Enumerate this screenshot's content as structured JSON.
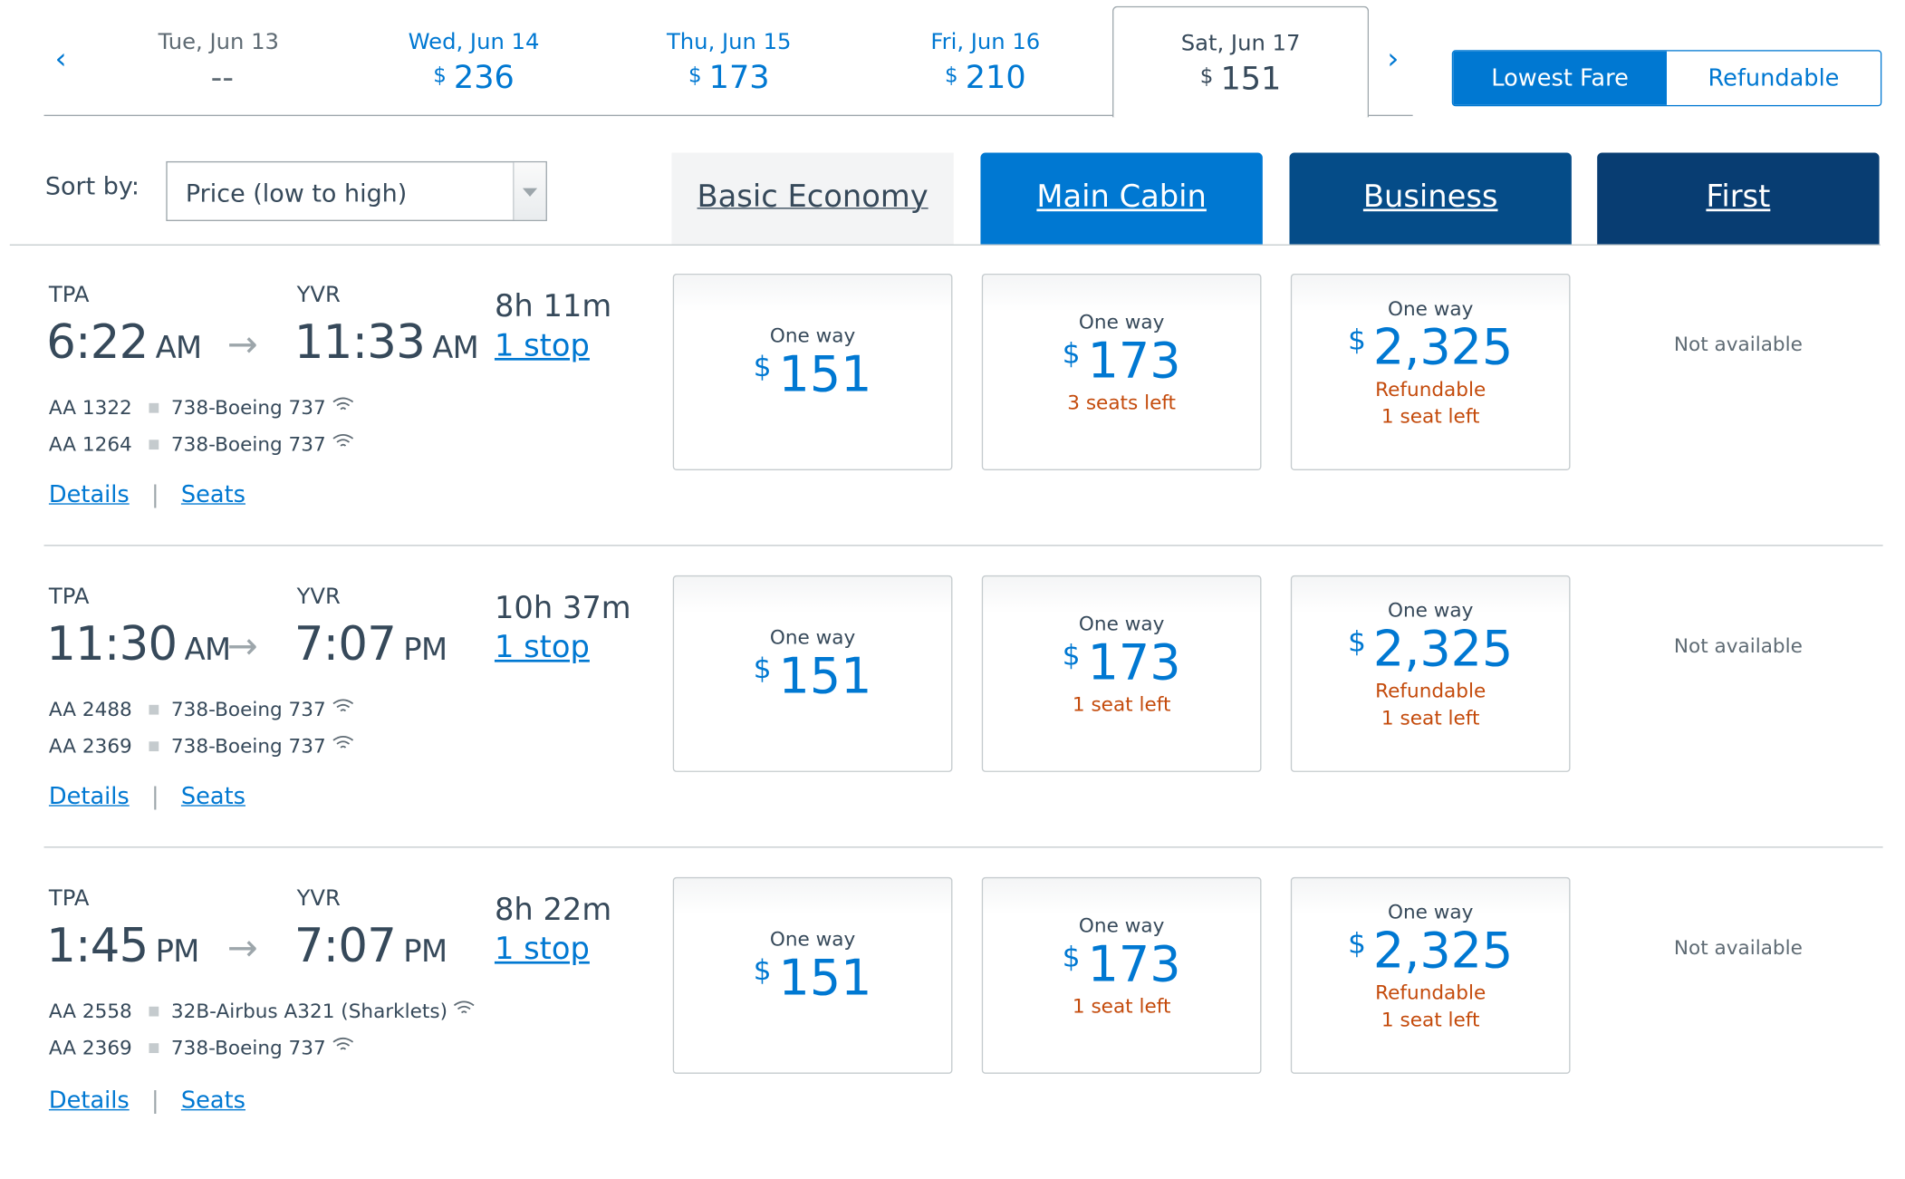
{
  "date_strip": {
    "prev_icon": "chevron-left-icon",
    "next_icon": "chevron-right-icon",
    "prev_glyph": "‹",
    "next_glyph": "›",
    "dates": [
      {
        "label": "Tue, Jun 13",
        "currency": "",
        "price": "--"
      },
      {
        "label": "Wed, Jun 14",
        "currency": "$",
        "price": "236"
      },
      {
        "label": "Thu, Jun 15",
        "currency": "$",
        "price": "173"
      },
      {
        "label": "Fri, Jun 16",
        "currency": "$",
        "price": "210"
      },
      {
        "label": "Sat, Jun 17",
        "currency": "$",
        "price": "151",
        "selected": true
      }
    ]
  },
  "fare_toggle": {
    "lowest": "Lowest Fare",
    "refundable": "Refundable",
    "active": "Lowest Fare"
  },
  "sort": {
    "label": "Sort by:",
    "value": "Price (low to high)"
  },
  "cabins": [
    "Basic Economy",
    "Main Cabin",
    "Business",
    "First"
  ],
  "colors": {
    "accent": "#0078d2",
    "business": "#054c88",
    "first": "#083d72",
    "warning": "#c44b0c"
  },
  "flights": [
    {
      "origin": "TPA",
      "dest": "YVR",
      "depart": "6:22",
      "depart_ampm": "AM",
      "arrive": "11:33",
      "arrive_ampm": "AM",
      "duration": "8h  11m",
      "stops": "1 stop",
      "legs": [
        {
          "flight": "AA 1322",
          "aircraft": "738-Boeing 737"
        },
        {
          "flight": "AA 1264",
          "aircraft": "738-Boeing 737"
        }
      ],
      "details": "Details",
      "seats": "Seats",
      "sep": "|",
      "fares": [
        {
          "label": "One way",
          "currency": "$",
          "amount": "151",
          "note1": "",
          "note2": ""
        },
        {
          "label": "One way",
          "currency": "$",
          "amount": "173",
          "note1": "3 seats left",
          "note2": ""
        },
        {
          "label": "One way",
          "currency": "$",
          "amount": "2,325",
          "note1": "Refundable",
          "note2": "1 seat left"
        }
      ],
      "first": "Not available"
    },
    {
      "origin": "TPA",
      "dest": "YVR",
      "depart": "11:30",
      "depart_ampm": "AM",
      "arrive": "7:07",
      "arrive_ampm": "PM",
      "duration": "10h  37m",
      "stops": "1 stop",
      "legs": [
        {
          "flight": "AA 2488",
          "aircraft": "738-Boeing 737"
        },
        {
          "flight": "AA 2369",
          "aircraft": "738-Boeing 737"
        }
      ],
      "details": "Details",
      "seats": "Seats",
      "sep": "|",
      "fares": [
        {
          "label": "One way",
          "currency": "$",
          "amount": "151",
          "note1": "",
          "note2": ""
        },
        {
          "label": "One way",
          "currency": "$",
          "amount": "173",
          "note1": "1 seat left",
          "note2": ""
        },
        {
          "label": "One way",
          "currency": "$",
          "amount": "2,325",
          "note1": "Refundable",
          "note2": "1 seat left"
        }
      ],
      "first": "Not available"
    },
    {
      "origin": "TPA",
      "dest": "YVR",
      "depart": "1:45",
      "depart_ampm": "PM",
      "arrive": "7:07",
      "arrive_ampm": "PM",
      "duration": "8h  22m",
      "stops": "1 stop",
      "legs": [
        {
          "flight": "AA 2558",
          "aircraft": "32B-Airbus A321 (Sharklets)"
        },
        {
          "flight": "AA 2369",
          "aircraft": "738-Boeing 737"
        }
      ],
      "details": "Details",
      "seats": "Seats",
      "sep": "|",
      "fares": [
        {
          "label": "One way",
          "currency": "$",
          "amount": "151",
          "note1": "",
          "note2": ""
        },
        {
          "label": "One way",
          "currency": "$",
          "amount": "173",
          "note1": "1 seat left",
          "note2": ""
        },
        {
          "label": "One way",
          "currency": "$",
          "amount": "2,325",
          "note1": "Refundable",
          "note2": "1 seat left"
        }
      ],
      "first": "Not available"
    }
  ]
}
